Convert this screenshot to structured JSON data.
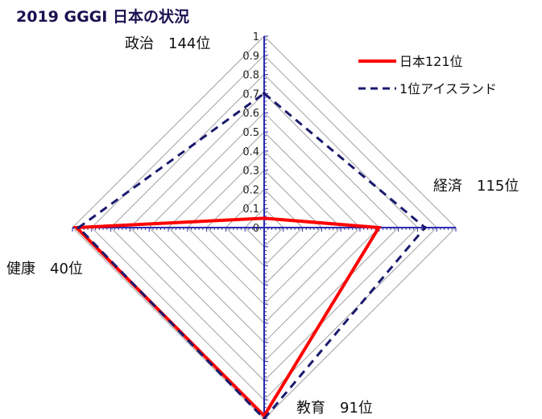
{
  "chart_data": {
    "type": "radar",
    "title": "2019 GGGI 日本の状況",
    "axes": [
      "政治　144位",
      "経済　115位",
      "教育　91位",
      "健康　40位"
    ],
    "rlim": [
      0,
      1
    ],
    "tick_labels": [
      "0",
      "0.1",
      "0.2",
      "0.3",
      "0.4",
      "0.5",
      "0.6",
      "0.7",
      "0.8",
      "0.9",
      "1"
    ],
    "grid": true,
    "legend_position": "top-right",
    "series": [
      {
        "name": "日本121位",
        "values": [
          0.049,
          0.598,
          0.983,
          0.979
        ],
        "color": "#ff0000",
        "style": "solid"
      },
      {
        "name": "1位アイスランド",
        "values": [
          0.701,
          0.839,
          0.999,
          0.968
        ],
        "color": "#1a1a6e",
        "style": "dashed"
      }
    ],
    "axis_color": "#2b2bb0",
    "grid_color": "#a0a0a0"
  }
}
